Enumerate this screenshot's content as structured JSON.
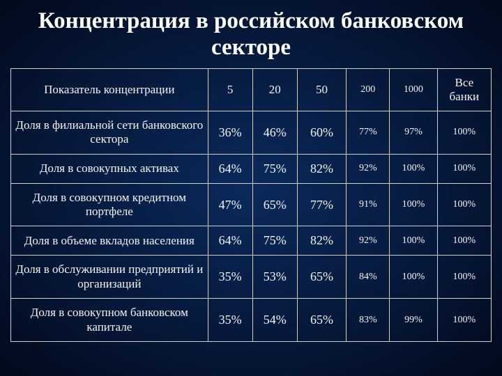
{
  "title": "Концентрация в российском банковском секторе",
  "table": {
    "header_label": "Показатель концентрации",
    "columns": [
      "5",
      "20",
      "50",
      "200",
      "1000",
      "Все банки"
    ],
    "column_small": [
      false,
      false,
      false,
      true,
      true,
      false
    ],
    "rows": [
      {
        "label": "Доля в филиальной сети банковского сектора",
        "cells": [
          "36%",
          "46%",
          "60%",
          "77%",
          "97%",
          "100%"
        ],
        "small": [
          false,
          false,
          false,
          true,
          true,
          true
        ]
      },
      {
        "label": "Доля в совокупных активах",
        "cells": [
          "64%",
          "75%",
          "82%",
          "92%",
          "100%",
          "100%"
        ],
        "small": [
          false,
          false,
          false,
          true,
          true,
          true
        ]
      },
      {
        "label": "Доля в совокупном кредитном портфеле",
        "cells": [
          "47%",
          "65%",
          "77%",
          "91%",
          "100%",
          "100%"
        ],
        "small": [
          false,
          false,
          false,
          true,
          true,
          true
        ]
      },
      {
        "label": "Доля в объеме вкладов населения",
        "cells": [
          "64%",
          "75%",
          "82%",
          "92%",
          "100%",
          "100%"
        ],
        "small": [
          false,
          false,
          false,
          true,
          true,
          true
        ]
      },
      {
        "label": "Доля в обслуживании предприятий и организаций",
        "cells": [
          "35%",
          "53%",
          "65%",
          "84%",
          "100%",
          "100%"
        ],
        "small": [
          false,
          false,
          false,
          true,
          true,
          true
        ]
      },
      {
        "label": "Доля в совокупном банковском капитале",
        "cells": [
          "35%",
          "54%",
          "65%",
          "83%",
          "99%",
          "100%"
        ],
        "small": [
          false,
          false,
          false,
          true,
          true,
          true
        ]
      }
    ]
  }
}
